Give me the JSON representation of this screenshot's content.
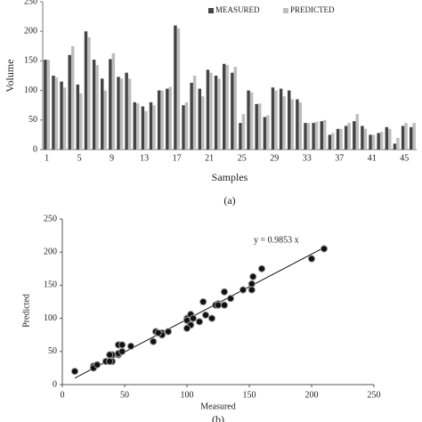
{
  "chart_data": [
    {
      "type": "bar",
      "ylabel": "Volume",
      "xlabel": "Samples",
      "caption": "(a)",
      "categories": [
        "1",
        null,
        null,
        null,
        "5",
        null,
        null,
        null,
        "9",
        null,
        null,
        null,
        "13",
        null,
        null,
        null,
        "17",
        null,
        null,
        null,
        "21",
        null,
        null,
        null,
        "25",
        null,
        null,
        null,
        "29",
        null,
        null,
        null,
        "33",
        null,
        null,
        null,
        "37",
        null,
        null,
        null,
        "41",
        null,
        null,
        null,
        "45",
        null
      ],
      "series": [
        {
          "name": "MEASURED",
          "color": "#444444",
          "values": [
            152,
            125,
            115,
            160,
            110,
            200,
            152,
            120,
            153,
            123,
            130,
            80,
            73,
            80,
            100,
            103,
            210,
            75,
            113,
            103,
            135,
            125,
            145,
            130,
            45,
            100,
            77,
            55,
            105,
            103,
            100,
            85,
            45,
            45,
            48,
            25,
            35,
            40,
            48,
            40,
            25,
            28,
            38,
            10,
            40,
            38
          ]
        },
        {
          "name": "PREDICTED",
          "color": "#bdbdbd",
          "values": [
            152,
            122,
            105,
            175,
            95,
            190,
            143,
            100,
            163,
            120,
            120,
            78,
            65,
            75,
            100,
            106,
            205,
            80,
            125,
            90,
            130,
            120,
            143,
            140,
            60,
            97,
            78,
            58,
            100,
            90,
            85,
            80,
            45,
            47,
            50,
            28,
            35,
            45,
            60,
            35,
            25,
            30,
            35,
            20,
            45,
            45
          ]
        }
      ],
      "ylim": [
        0,
        250
      ],
      "yticks": [
        0,
        50,
        100,
        150,
        200,
        250
      ],
      "legend": "top-right"
    },
    {
      "type": "scatter",
      "xlabel": "Measured",
      "ylabel": "Predicted",
      "caption": "(b)",
      "annotation": "y = 0.9853 x",
      "slope": 0.9853,
      "color": "#111111",
      "x": [
        152,
        125,
        115,
        160,
        110,
        200,
        152,
        120,
        153,
        123,
        130,
        80,
        73,
        80,
        100,
        103,
        210,
        75,
        113,
        103,
        135,
        125,
        145,
        130,
        45,
        100,
        77,
        55,
        105,
        103,
        100,
        85,
        45,
        45,
        48,
        25,
        35,
        40,
        48,
        40,
        25,
        28,
        38,
        10,
        40,
        38
      ],
      "values": [
        152,
        122,
        105,
        175,
        95,
        190,
        143,
        100,
        163,
        120,
        120,
        78,
        65,
        75,
        100,
        106,
        205,
        80,
        125,
        90,
        130,
        120,
        143,
        140,
        60,
        97,
        78,
        58,
        100,
        90,
        85,
        80,
        45,
        47,
        50,
        28,
        35,
        45,
        60,
        35,
        25,
        30,
        35,
        20,
        45,
        45
      ],
      "xlim": [
        0,
        250
      ],
      "xticks": [
        0,
        50,
        100,
        150,
        200,
        250
      ],
      "ylim": [
        0,
        250
      ],
      "yticks": [
        0,
        50,
        100,
        150,
        200,
        250
      ]
    }
  ]
}
